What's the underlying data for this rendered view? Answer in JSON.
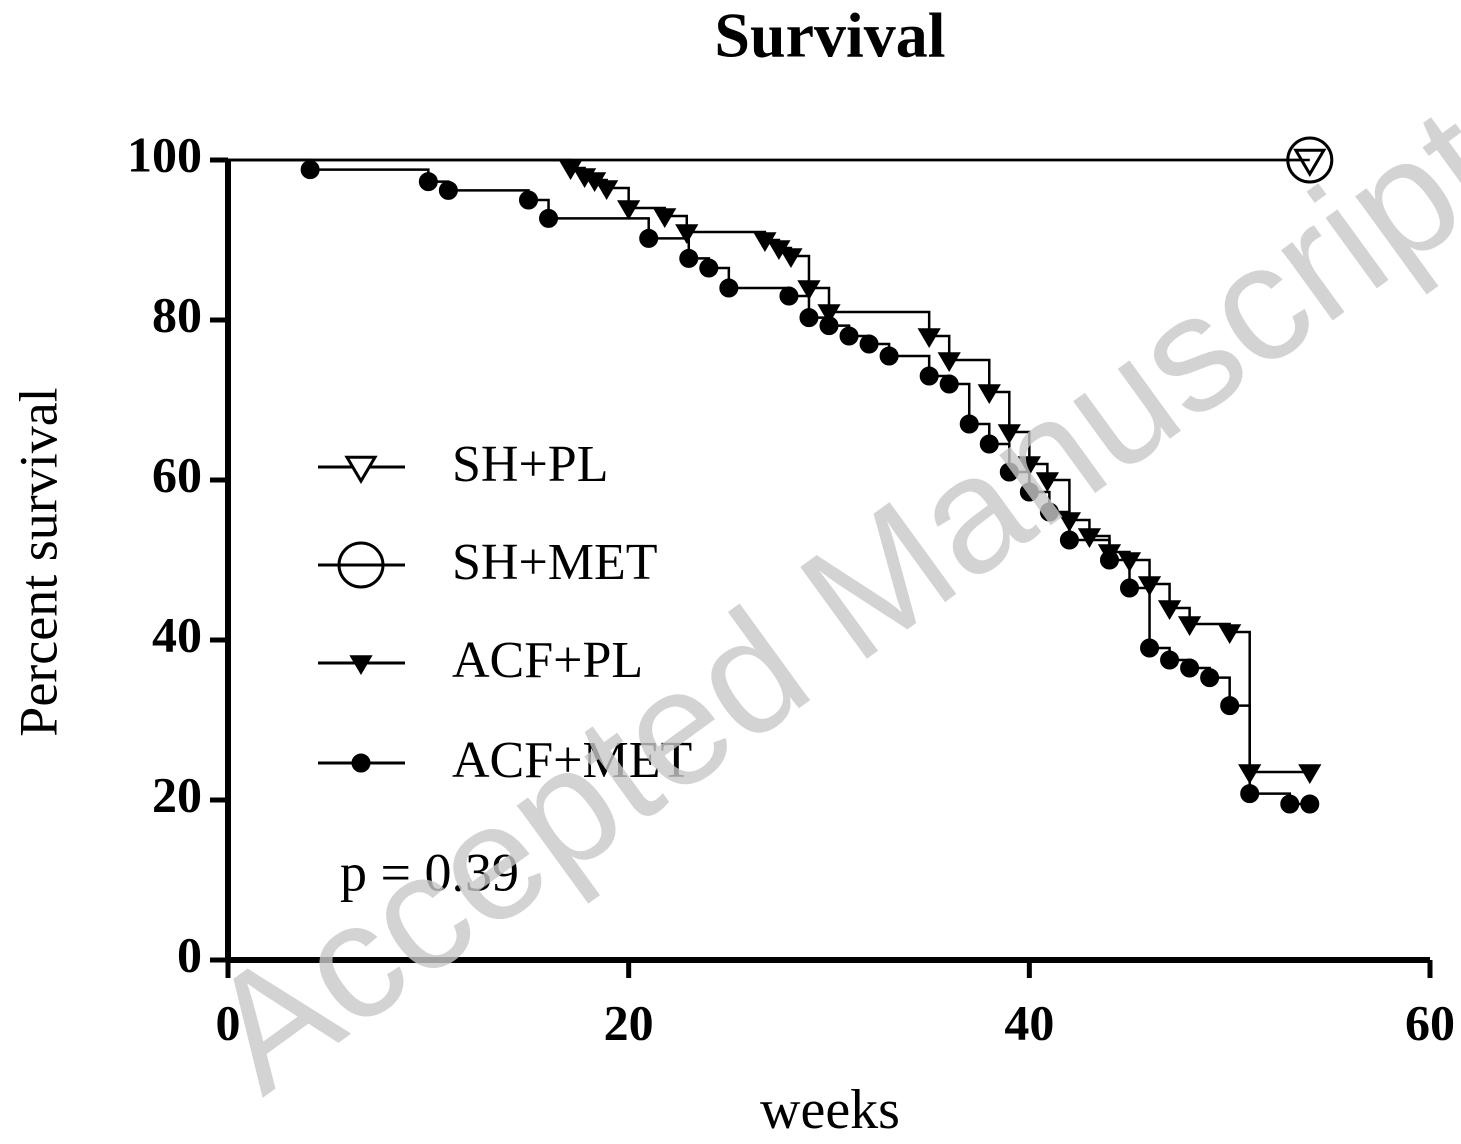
{
  "chart_data": {
    "type": "survival",
    "title": "Survival",
    "xlabel": "weeks",
    "ylabel": "Percent survival",
    "annotation": "p = 0.39",
    "watermark": "Accepted Manuscript",
    "xlim": [
      0,
      60
    ],
    "xticks": [
      0,
      20,
      40,
      60
    ],
    "ylim": [
      0,
      100
    ],
    "yticks": [
      0,
      20,
      40,
      60,
      80,
      100
    ],
    "series": [
      {
        "name": "SH+PL",
        "color": "#000000",
        "marker": "triangle-open",
        "x": [
          54
        ],
        "values": [
          100
        ]
      },
      {
        "name": "SH+MET",
        "color": "#000000",
        "marker": "circle-open",
        "x": [
          54
        ],
        "values": [
          100
        ]
      },
      {
        "name": "ACF+PL",
        "color": "#000000",
        "marker": "triangle",
        "x": [
          17.1,
          17.8,
          18.3,
          18.9,
          20,
          21.8,
          22.9,
          26.8,
          27.5,
          28.1,
          29,
          30,
          35,
          36,
          38,
          39,
          40,
          40.9,
          42,
          43,
          44,
          45,
          46,
          47,
          48,
          50,
          51,
          54
        ],
        "values": [
          99,
          98,
          97.5,
          96.5,
          94,
          93,
          91,
          90,
          89,
          88,
          84,
          81,
          78,
          75,
          71,
          66,
          62,
          60,
          55,
          53,
          51,
          50,
          47,
          44,
          42,
          41,
          23.5,
          23.5
        ]
      },
      {
        "name": "ACF+MET",
        "color": "#000000",
        "marker": "circle",
        "x": [
          4.1,
          10,
          11,
          15,
          16,
          21,
          23,
          24,
          25,
          28,
          29,
          30,
          31,
          32,
          33,
          35,
          36,
          37,
          38,
          39,
          40,
          41,
          42,
          44,
          45,
          46,
          47,
          48,
          49,
          50,
          51,
          53,
          54
        ],
        "values": [
          98.8,
          97.3,
          96.2,
          95,
          92.7,
          90.2,
          87.7,
          86.5,
          84,
          83,
          80.3,
          79.3,
          78,
          77,
          75.5,
          73,
          72,
          67,
          64.5,
          61,
          58.5,
          56,
          52.5,
          50,
          46.5,
          39,
          37.5,
          36.5,
          35.3,
          31.8,
          20.8,
          19.5,
          19.5
        ]
      }
    ]
  }
}
